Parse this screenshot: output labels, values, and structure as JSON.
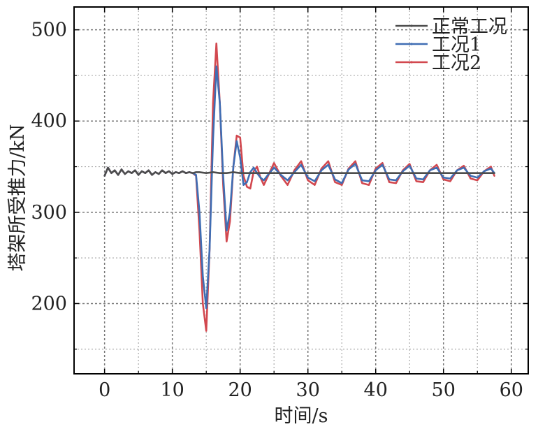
{
  "chart_data": {
    "type": "line",
    "title": "",
    "xlabel": "时间/s",
    "ylabel": "塔架所受推力/kN",
    "xlim": [
      -4.5,
      62.5
    ],
    "ylim": [
      123,
      525
    ],
    "x_ticks": [
      0,
      10,
      20,
      30,
      40,
      50,
      60
    ],
    "y_ticks": [
      200,
      300,
      400,
      500
    ],
    "x_minor_ticks": [
      5,
      15,
      25,
      35,
      45,
      55
    ],
    "y_minor_ticks": [
      150,
      250,
      350,
      450
    ],
    "grid": true,
    "legend_position": "top-right",
    "series": [
      {
        "name": "正常工况",
        "color": "#4d4d4d",
        "x": [
          0,
          0.5,
          1,
          1.5,
          2,
          2.5,
          3,
          3.5,
          4,
          4.5,
          5,
          5.5,
          6,
          6.5,
          7,
          7.5,
          8,
          8.5,
          9,
          9.5,
          10,
          10.5,
          11,
          11.5,
          12,
          12.5,
          13,
          13.5,
          14,
          15,
          16,
          17,
          18,
          19,
          20,
          22,
          24,
          26,
          28,
          30,
          32,
          34,
          36,
          38,
          40,
          42,
          44,
          46,
          48,
          50,
          52,
          54,
          56,
          57.5
        ],
        "y": [
          340,
          349,
          343,
          346,
          341,
          347,
          342,
          345,
          343,
          346,
          341,
          345,
          343,
          346,
          341,
          344,
          342,
          346,
          343,
          345,
          342,
          344,
          343,
          345,
          343,
          344,
          343,
          344,
          344,
          343,
          344,
          343,
          343,
          344,
          343,
          343,
          343,
          343,
          343,
          343,
          343,
          343,
          343,
          343,
          343,
          343,
          343,
          343,
          343,
          343,
          343,
          343,
          343,
          343
        ]
      },
      {
        "name": "工况1",
        "color": "#3f6db3",
        "x": [
          0,
          0.5,
          1,
          1.5,
          2,
          2.5,
          3,
          3.5,
          4,
          4.5,
          5,
          5.5,
          6,
          6.5,
          7,
          7.5,
          8,
          8.5,
          9,
          9.5,
          10,
          10.5,
          11,
          11.5,
          12,
          12.5,
          13,
          13.5,
          14,
          14.5,
          15,
          15.5,
          16,
          16.5,
          17,
          17.5,
          18,
          18.5,
          19,
          19.5,
          20,
          20.5,
          21,
          21.5,
          22,
          22.5,
          23,
          23.5,
          24,
          25,
          26,
          27,
          28,
          29,
          30,
          31,
          32,
          33,
          34,
          35,
          36,
          37,
          38,
          39,
          40,
          41,
          42,
          43,
          44,
          45,
          46,
          47,
          48,
          49,
          50,
          51,
          52,
          53,
          54,
          55,
          56,
          57,
          57.5
        ],
        "y": [
          340,
          349,
          343,
          346,
          341,
          347,
          342,
          345,
          343,
          346,
          341,
          345,
          343,
          346,
          341,
          344,
          342,
          346,
          343,
          345,
          342,
          344,
          343,
          345,
          343,
          344,
          343,
          341,
          300,
          230,
          195,
          260,
          380,
          460,
          420,
          340,
          280,
          300,
          350,
          378,
          360,
          330,
          333,
          344,
          349,
          343,
          338,
          335,
          340,
          349,
          341,
          335,
          344,
          352,
          338,
          334,
          346,
          352,
          336,
          332,
          347,
          353,
          335,
          334,
          346,
          352,
          336,
          335,
          345,
          351,
          337,
          336,
          346,
          349,
          338,
          337,
          346,
          349,
          340,
          338,
          345,
          348,
          343
        ]
      },
      {
        "name": "工况2",
        "color": "#d2484f",
        "x": [
          0,
          0.5,
          1,
          1.5,
          2,
          2.5,
          3,
          3.5,
          4,
          4.5,
          5,
          5.5,
          6,
          6.5,
          7,
          7.5,
          8,
          8.5,
          9,
          9.5,
          10,
          10.5,
          11,
          11.5,
          12,
          12.5,
          13,
          13.5,
          14,
          14.5,
          15,
          15.5,
          16,
          16.5,
          17,
          17.5,
          18,
          18.5,
          19,
          19.5,
          20,
          20.5,
          21,
          21.5,
          22,
          22.5,
          23,
          23.5,
          24,
          25,
          26,
          27,
          28,
          29,
          30,
          31,
          32,
          33,
          34,
          35,
          36,
          37,
          38,
          39,
          40,
          41,
          42,
          43,
          44,
          45,
          46,
          47,
          48,
          49,
          50,
          51,
          52,
          53,
          54,
          55,
          56,
          57,
          57.5
        ],
        "y": [
          340,
          349,
          343,
          346,
          341,
          347,
          342,
          345,
          343,
          346,
          341,
          345,
          343,
          346,
          341,
          344,
          342,
          346,
          343,
          345,
          342,
          344,
          343,
          345,
          343,
          344,
          343,
          340,
          280,
          200,
          170,
          260,
          420,
          485,
          420,
          330,
          268,
          290,
          350,
          384,
          382,
          340,
          328,
          326,
          345,
          350,
          338,
          330,
          338,
          354,
          340,
          330,
          346,
          356,
          335,
          330,
          348,
          356,
          333,
          330,
          348,
          356,
          332,
          330,
          348,
          354,
          333,
          332,
          346,
          353,
          334,
          333,
          346,
          352,
          336,
          334,
          346,
          351,
          337,
          335,
          345,
          350,
          340
        ]
      }
    ]
  }
}
